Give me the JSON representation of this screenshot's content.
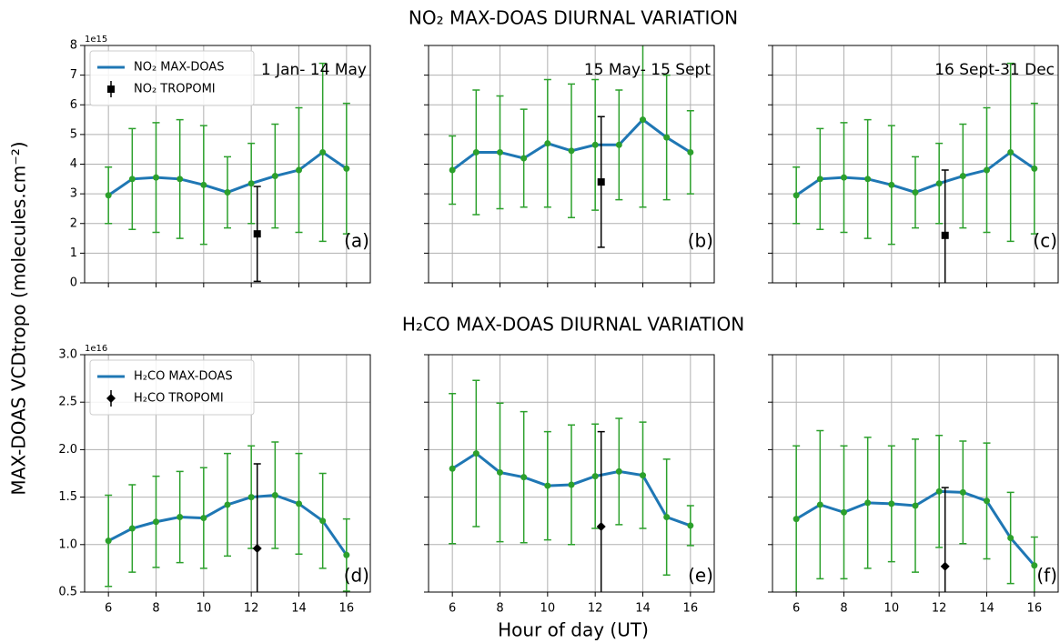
{
  "figure": {
    "row_titles": [
      "NO₂ MAX-DOAS DIURNAL VARIATION",
      "H₂CO MAX-DOAS DIURNAL VARIATION"
    ],
    "ylabel": "MAX-DOAS VCDtropo (molecules.cm⁻²)",
    "xlabel": "Hour of day (UT)"
  },
  "chart_data": [
    {
      "type": "line",
      "annotation": "1 Jan- 14 May",
      "panel_label": "(a)",
      "offset_text": "1e15",
      "legend": "upper left",
      "x": [
        6,
        7,
        8,
        9,
        10,
        11,
        12,
        13,
        14,
        15,
        16
      ],
      "series": [
        {
          "name": "NO₂  MAX-DOAS",
          "color": "#1f77b4",
          "marker_color": "#2ca02c",
          "error_color": "#2ca02c",
          "values": [
            2.95,
            3.5,
            3.55,
            3.5,
            3.3,
            3.05,
            3.35,
            3.6,
            3.8,
            4.4,
            3.85
          ],
          "errors": [
            0.95,
            1.7,
            1.85,
            2.0,
            2.0,
            1.2,
            1.35,
            1.75,
            2.1,
            3.0,
            2.2
          ]
        },
        {
          "name": "NO₂ TROPOMI",
          "color": "#000000",
          "marker": "square",
          "x": [
            12.25
          ],
          "values": [
            1.65
          ],
          "errors": [
            1.6
          ]
        }
      ],
      "xlim": [
        5,
        17
      ],
      "ylim": [
        0,
        8
      ],
      "xticks": [
        6,
        8,
        10,
        12,
        14,
        16
      ],
      "yticks": [
        0,
        1,
        2,
        3,
        4,
        5,
        6,
        7,
        8
      ],
      "grid": true,
      "xtick_labels": false,
      "ytick_labels": true
    },
    {
      "type": "line",
      "annotation": "15 May- 15 Sept",
      "panel_label": "(b)",
      "x": [
        6,
        7,
        8,
        9,
        10,
        11,
        12,
        13,
        14,
        15,
        16
      ],
      "series": [
        {
          "color": "#1f77b4",
          "marker_color": "#2ca02c",
          "error_color": "#2ca02c",
          "values": [
            3.8,
            4.4,
            4.4,
            4.2,
            4.7,
            4.45,
            4.65,
            4.65,
            5.5,
            4.9,
            4.4
          ],
          "errors": [
            1.15,
            2.1,
            1.9,
            1.65,
            2.15,
            2.25,
            2.2,
            1.85,
            2.95,
            2.1,
            1.4
          ]
        },
        {
          "color": "#000000",
          "marker": "square",
          "x": [
            12.25
          ],
          "values": [
            3.4
          ],
          "errors": [
            2.2
          ]
        }
      ],
      "xlim": [
        5,
        17
      ],
      "ylim": [
        0,
        8
      ],
      "xticks": [
        6,
        8,
        10,
        12,
        14,
        16
      ],
      "yticks": [
        0,
        1,
        2,
        3,
        4,
        5,
        6,
        7,
        8
      ],
      "grid": true,
      "xtick_labels": false,
      "ytick_labels": false
    },
    {
      "type": "line",
      "annotation": "16 Sept-31 Dec",
      "panel_label": "(c)",
      "x": [
        6,
        7,
        8,
        9,
        10,
        11,
        12,
        13,
        14,
        15,
        16
      ],
      "series": [
        {
          "color": "#1f77b4",
          "marker_color": "#2ca02c",
          "error_color": "#2ca02c",
          "values": [
            2.95,
            3.5,
            3.55,
            3.5,
            3.3,
            3.05,
            3.35,
            3.6,
            3.8,
            4.4,
            3.85
          ],
          "errors": [
            0.95,
            1.7,
            1.85,
            2.0,
            2.0,
            1.2,
            1.35,
            1.75,
            2.1,
            3.0,
            2.2
          ]
        },
        {
          "color": "#000000",
          "marker": "square",
          "x": [
            12.25
          ],
          "values": [
            1.6
          ],
          "errors": [
            2.2
          ]
        }
      ],
      "xlim": [
        5,
        17
      ],
      "ylim": [
        0,
        8
      ],
      "xticks": [
        6,
        8,
        10,
        12,
        14,
        16
      ],
      "yticks": [
        0,
        1,
        2,
        3,
        4,
        5,
        6,
        7,
        8
      ],
      "grid": true,
      "xtick_labels": false,
      "ytick_labels": false
    },
    {
      "type": "line",
      "panel_label": "(d)",
      "offset_text": "1e16",
      "legend": "upper left",
      "x": [
        6,
        7,
        8,
        9,
        10,
        11,
        12,
        13,
        14,
        15,
        16
      ],
      "series": [
        {
          "name": "H₂CO MAX-DOAS",
          "color": "#1f77b4",
          "marker_color": "#2ca02c",
          "error_color": "#2ca02c",
          "values": [
            1.04,
            1.17,
            1.24,
            1.29,
            1.28,
            1.42,
            1.5,
            1.52,
            1.43,
            1.25,
            0.89
          ],
          "errors": [
            0.48,
            0.46,
            0.48,
            0.48,
            0.53,
            0.54,
            0.54,
            0.56,
            0.53,
            0.5,
            0.38
          ]
        },
        {
          "name": "H₂CO TROPOMI",
          "color": "#000000",
          "marker": "diamond",
          "x": [
            12.25
          ],
          "values": [
            0.96
          ],
          "errors": [
            0.89
          ]
        }
      ],
      "xlim": [
        5,
        17
      ],
      "ylim": [
        0.5,
        3.0
      ],
      "xticks": [
        6,
        8,
        10,
        12,
        14,
        16
      ],
      "yticks": [
        0.5,
        {
          "value": 1,
          "label": "1.0"
        },
        1.5,
        {
          "value": 2,
          "label": "2.0"
        },
        2.5,
        {
          "value": 3,
          "label": "3.0"
        }
      ],
      "grid": true,
      "xtick_labels": true,
      "ytick_labels": true
    },
    {
      "type": "line",
      "panel_label": "(e)",
      "x": [
        6,
        7,
        8,
        9,
        10,
        11,
        12,
        13,
        14,
        15,
        16
      ],
      "series": [
        {
          "color": "#1f77b4",
          "marker_color": "#2ca02c",
          "error_color": "#2ca02c",
          "values": [
            1.8,
            1.96,
            1.76,
            1.71,
            1.62,
            1.63,
            1.72,
            1.77,
            1.73,
            1.29,
            1.2
          ],
          "errors": [
            0.79,
            0.77,
            0.73,
            0.69,
            0.57,
            0.63,
            0.55,
            0.56,
            0.56,
            0.61,
            0.21
          ]
        },
        {
          "color": "#000000",
          "marker": "diamond",
          "x": [
            12.25
          ],
          "values": [
            1.19
          ],
          "errors": [
            1.0
          ]
        }
      ],
      "xlim": [
        5,
        17
      ],
      "ylim": [
        0.5,
        3.0
      ],
      "xticks": [
        6,
        8,
        10,
        12,
        14,
        16
      ],
      "yticks": [
        0.5,
        {
          "value": 1,
          "label": "1.0"
        },
        1.5,
        {
          "value": 2,
          "label": "2.0"
        },
        2.5,
        {
          "value": 3,
          "label": "3.0"
        }
      ],
      "grid": true,
      "xtick_labels": true,
      "ytick_labels": false
    },
    {
      "type": "line",
      "panel_label": "(f)",
      "x": [
        6,
        7,
        8,
        9,
        10,
        11,
        12,
        13,
        14,
        15,
        16
      ],
      "series": [
        {
          "color": "#1f77b4",
          "marker_color": "#2ca02c",
          "error_color": "#2ca02c",
          "values": [
            1.27,
            1.42,
            1.34,
            1.44,
            1.43,
            1.41,
            1.56,
            1.55,
            1.46,
            1.07,
            0.78
          ],
          "errors": [
            0.77,
            0.78,
            0.7,
            0.69,
            0.61,
            0.7,
            0.59,
            0.54,
            0.61,
            0.48,
            0.3
          ]
        },
        {
          "color": "#000000",
          "marker": "diamond",
          "x": [
            12.25
          ],
          "values": [
            0.77
          ],
          "errors": [
            0.83
          ]
        }
      ],
      "xlim": [
        5,
        17
      ],
      "ylim": [
        0.5,
        3.0
      ],
      "xticks": [
        6,
        8,
        10,
        12,
        14,
        16
      ],
      "yticks": [
        0.5,
        {
          "value": 1,
          "label": "1.0"
        },
        1.5,
        {
          "value": 2,
          "label": "2.0"
        },
        2.5,
        {
          "value": 3,
          "label": "3.0"
        }
      ],
      "grid": true,
      "xtick_labels": true,
      "ytick_labels": false
    }
  ]
}
